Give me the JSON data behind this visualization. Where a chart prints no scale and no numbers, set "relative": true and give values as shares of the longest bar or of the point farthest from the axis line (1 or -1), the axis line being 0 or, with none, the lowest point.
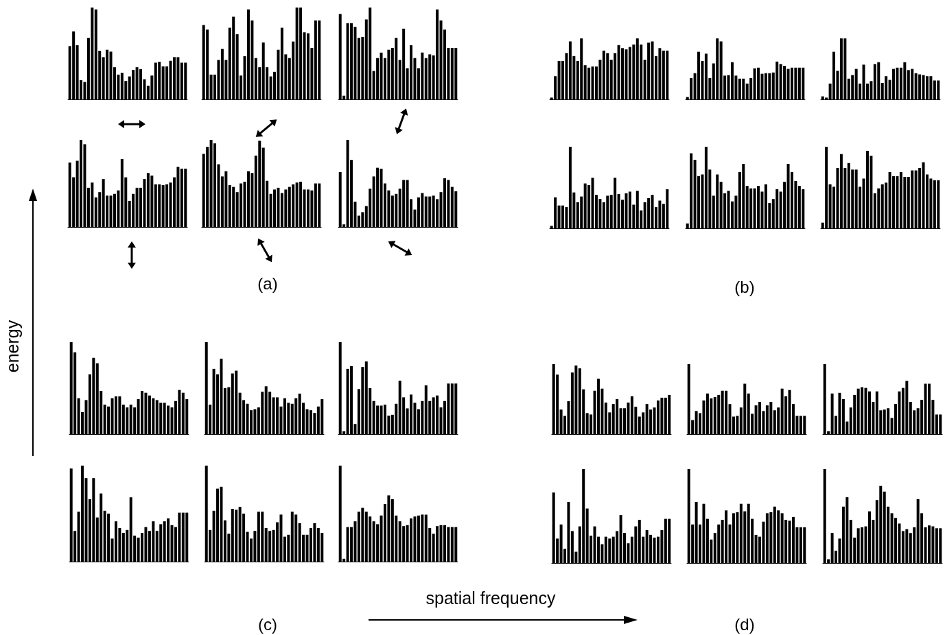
{
  "chart_data": [
    {
      "type": "bar",
      "relative": true,
      "color": "#000000",
      "annotations": [
        "(a)"
      ],
      "categories": [
        null,
        null,
        null,
        null,
        null,
        null,
        null,
        null,
        null,
        null,
        null,
        null,
        null,
        null,
        null,
        null,
        null,
        null,
        null,
        null,
        null,
        null,
        null,
        null,
        null,
        null,
        null,
        null,
        null,
        null,
        null,
        null
      ],
      "values": [
        0.58,
        0.74,
        0.59,
        0.21,
        0.19,
        0.67,
        1.0,
        0.98,
        0.53,
        0.46,
        0.54,
        0.52,
        0.35,
        0.27,
        0.29,
        0.2,
        0.25,
        0.32,
        0.35,
        0.33,
        0.22,
        0.15,
        0.26,
        0.4,
        0.41,
        0.36,
        0.36,
        0.42,
        0.46,
        0.46,
        0.4,
        0.4
      ]
    },
    {
      "type": "bar",
      "relative": true,
      "color": "#000000",
      "categories": [
        null,
        null,
        null,
        null,
        null,
        null,
        null,
        null,
        null,
        null,
        null,
        null,
        null,
        null,
        null,
        null,
        null,
        null,
        null,
        null,
        null,
        null,
        null,
        null,
        null,
        null,
        null,
        null,
        null,
        null,
        null,
        null
      ],
      "values": [
        0.81,
        0.76,
        0.27,
        0.27,
        0.43,
        0.55,
        0.43,
        0.78,
        0.9,
        0.71,
        0.26,
        0.47,
        0.98,
        0.86,
        0.45,
        0.35,
        0.62,
        0.35,
        0.25,
        0.3,
        0.54,
        0.78,
        0.49,
        0.45,
        0.63,
        1.0,
        1.0,
        0.73,
        0.72,
        0.56,
        0.86,
        0.86
      ]
    },
    {
      "type": "bar",
      "relative": true,
      "color": "#000000",
      "categories": [
        null,
        null,
        null,
        null,
        null,
        null,
        null,
        null,
        null,
        null,
        null,
        null,
        null,
        null,
        null,
        null,
        null,
        null,
        null,
        null,
        null,
        null,
        null,
        null,
        null,
        null,
        null,
        null,
        null,
        null,
        null,
        null
      ],
      "values": [
        0.93,
        0.04,
        0.83,
        0.83,
        0.79,
        0.67,
        0.68,
        0.87,
        1.0,
        0.31,
        0.45,
        0.51,
        0.45,
        0.54,
        0.56,
        0.67,
        0.43,
        0.77,
        0.34,
        0.59,
        0.45,
        0.34,
        0.51,
        0.45,
        0.49,
        0.48,
        0.98,
        0.86,
        0.76,
        0.56,
        0.56,
        0.56
      ]
    },
    {
      "type": "bar",
      "relative": true,
      "color": "#000000",
      "categories": [
        null,
        null,
        null,
        null,
        null,
        null,
        null,
        null,
        null,
        null,
        null,
        null,
        null,
        null,
        null,
        null,
        null,
        null,
        null,
        null,
        null,
        null,
        null,
        null,
        null,
        null,
        null,
        null,
        null,
        null,
        null,
        null
      ],
      "values": [
        0.74,
        0.57,
        0.76,
        1.0,
        0.95,
        0.45,
        0.51,
        0.34,
        0.4,
        0.55,
        0.36,
        0.36,
        0.38,
        0.42,
        0.78,
        0.57,
        0.3,
        0.38,
        0.45,
        0.45,
        0.55,
        0.62,
        0.59,
        0.49,
        0.49,
        0.48,
        0.49,
        0.51,
        0.57,
        0.69,
        0.67,
        0.67
      ]
    },
    {
      "type": "bar",
      "relative": true,
      "color": "#000000",
      "categories": [
        null,
        null,
        null,
        null,
        null,
        null,
        null,
        null,
        null,
        null,
        null,
        null,
        null,
        null,
        null,
        null,
        null,
        null,
        null,
        null,
        null,
        null,
        null,
        null,
        null,
        null,
        null,
        null,
        null,
        null,
        null,
        null
      ],
      "values": [
        0.84,
        0.92,
        1.0,
        0.96,
        0.72,
        0.58,
        0.64,
        0.48,
        0.46,
        0.4,
        0.5,
        0.52,
        0.64,
        0.62,
        0.82,
        0.99,
        0.91,
        0.53,
        0.38,
        0.43,
        0.45,
        0.39,
        0.43,
        0.46,
        0.49,
        0.51,
        0.52,
        0.43,
        0.43,
        0.42,
        0.5,
        0.5
      ]
    },
    {
      "type": "bar",
      "relative": true,
      "color": "#000000",
      "categories": [
        null,
        null,
        null,
        null,
        null,
        null,
        null,
        null,
        null,
        null,
        null,
        null,
        null,
        null,
        null,
        null,
        null,
        null,
        null,
        null,
        null,
        null,
        null,
        null,
        null,
        null,
        null,
        null,
        null,
        null,
        null,
        null
      ],
      "values": [
        0.63,
        0.03,
        1.0,
        0.77,
        0.29,
        0.13,
        0.17,
        0.24,
        0.44,
        0.58,
        0.68,
        0.67,
        0.5,
        0.42,
        0.36,
        0.38,
        0.44,
        0.54,
        0.54,
        0.32,
        0.2,
        0.34,
        0.39,
        0.35,
        0.35,
        0.36,
        0.32,
        0.4,
        0.56,
        0.54,
        0.46,
        0.41
      ]
    },
    {
      "type": "bar",
      "relative": true,
      "color": "#000000",
      "annotations": [
        "(b)"
      ],
      "categories": [
        null,
        null,
        null,
        null,
        null,
        null,
        null,
        null,
        null,
        null,
        null,
        null,
        null,
        null,
        null,
        null,
        null,
        null,
        null,
        null,
        null,
        null,
        null,
        null,
        null,
        null,
        null,
        null,
        null,
        null,
        null,
        null
      ],
      "values": [
        0.03,
        0.38,
        0.63,
        0.63,
        0.76,
        0.95,
        0.71,
        0.63,
        1.0,
        0.56,
        0.52,
        0.54,
        0.54,
        0.65,
        0.8,
        0.76,
        0.65,
        0.76,
        0.89,
        0.84,
        0.82,
        0.86,
        0.9,
        1.0,
        0.9,
        0.65,
        0.93,
        0.95,
        0.71,
        0.84,
        0.8,
        0.8
      ]
    },
    {
      "type": "bar",
      "relative": true,
      "color": "#000000",
      "categories": [
        null,
        null,
        null,
        null,
        null,
        null,
        null,
        null,
        null,
        null,
        null,
        null,
        null,
        null,
        null,
        null,
        null,
        null,
        null,
        null,
        null,
        null,
        null,
        null,
        null,
        null,
        null,
        null,
        null,
        null,
        null,
        null
      ],
      "values": [
        0.04,
        0.35,
        0.43,
        0.78,
        0.63,
        0.75,
        0.35,
        0.59,
        1.0,
        0.95,
        0.39,
        0.4,
        0.61,
        0.39,
        0.34,
        0.34,
        0.26,
        0.35,
        0.51,
        0.52,
        0.42,
        0.43,
        0.43,
        0.44,
        0.62,
        0.58,
        0.55,
        0.5,
        0.52,
        0.52,
        0.52,
        0.52
      ]
    },
    {
      "type": "bar",
      "relative": true,
      "color": "#000000",
      "categories": [
        null,
        null,
        null,
        null,
        null,
        null,
        null,
        null,
        null,
        null,
        null,
        null,
        null,
        null,
        null,
        null,
        null,
        null,
        null,
        null,
        null,
        null,
        null,
        null,
        null,
        null,
        null,
        null,
        null,
        null,
        null,
        null
      ],
      "values": [
        0.05,
        0.03,
        0.26,
        0.78,
        0.47,
        1.0,
        1.0,
        0.34,
        0.4,
        0.5,
        0.26,
        0.57,
        0.26,
        0.3,
        0.58,
        0.61,
        0.27,
        0.38,
        0.32,
        0.5,
        0.52,
        0.52,
        0.61,
        0.48,
        0.5,
        0.43,
        0.41,
        0.4,
        0.38,
        0.38,
        0.31,
        0.31
      ]
    },
    {
      "type": "bar",
      "relative": true,
      "color": "#000000",
      "categories": [
        null,
        null,
        null,
        null,
        null,
        null,
        null,
        null,
        null,
        null,
        null,
        null,
        null,
        null,
        null,
        null,
        null,
        null,
        null,
        null,
        null,
        null,
        null,
        null,
        null,
        null,
        null,
        null,
        null,
        null,
        null,
        null
      ],
      "values": [
        0.03,
        0.38,
        0.28,
        0.28,
        0.26,
        1.0,
        0.44,
        0.32,
        0.39,
        0.55,
        0.53,
        0.62,
        0.41,
        0.36,
        0.32,
        0.4,
        0.41,
        0.62,
        0.42,
        0.35,
        0.43,
        0.45,
        0.29,
        0.46,
        0.22,
        0.32,
        0.37,
        0.41,
        0.26,
        0.34,
        0.3,
        0.48
      ]
    },
    {
      "type": "bar",
      "relative": true,
      "color": "#000000",
      "categories": [
        null,
        null,
        null,
        null,
        null,
        null,
        null,
        null,
        null,
        null,
        null,
        null,
        null,
        null,
        null,
        null,
        null,
        null,
        null,
        null,
        null,
        null,
        null,
        null,
        null,
        null,
        null,
        null,
        null,
        null,
        null,
        null
      ],
      "values": [
        0.06,
        0.92,
        0.84,
        0.64,
        0.66,
        1.0,
        0.72,
        0.4,
        0.66,
        0.57,
        0.43,
        0.46,
        0.33,
        0.4,
        0.69,
        0.79,
        0.52,
        0.49,
        0.49,
        0.52,
        0.45,
        0.54,
        0.31,
        0.36,
        0.48,
        0.45,
        0.57,
        0.79,
        0.69,
        0.58,
        0.52,
        0.48
      ]
    },
    {
      "type": "bar",
      "relative": true,
      "color": "#000000",
      "categories": [
        null,
        null,
        null,
        null,
        null,
        null,
        null,
        null,
        null,
        null,
        null,
        null,
        null,
        null,
        null,
        null,
        null,
        null,
        null,
        null,
        null,
        null,
        null,
        null,
        null,
        null,
        null,
        null,
        null,
        null,
        null,
        null
      ],
      "values": [
        0.07,
        1.0,
        0.54,
        0.51,
        0.74,
        0.91,
        0.74,
        0.8,
        0.72,
        0.72,
        0.51,
        0.61,
        0.95,
        0.89,
        0.43,
        0.49,
        0.54,
        0.56,
        0.69,
        0.64,
        0.64,
        0.69,
        0.63,
        0.63,
        0.71,
        0.71,
        0.74,
        0.81,
        0.66,
        0.61,
        0.59,
        0.59
      ]
    },
    {
      "type": "bar",
      "relative": true,
      "color": "#000000",
      "annotations": [
        "(c)"
      ],
      "ylabel": "energy",
      "categories": [
        null,
        null,
        null,
        null,
        null,
        null,
        null,
        null,
        null,
        null,
        null,
        null,
        null,
        null,
        null,
        null,
        null,
        null,
        null,
        null,
        null,
        null,
        null,
        null,
        null,
        null,
        null,
        null,
        null,
        null,
        null,
        null
      ],
      "values": [
        1.0,
        0.89,
        0.39,
        0.24,
        0.37,
        0.65,
        0.83,
        0.77,
        0.47,
        0.32,
        0.3,
        0.39,
        0.41,
        0.41,
        0.32,
        0.29,
        0.32,
        0.29,
        0.38,
        0.47,
        0.45,
        0.42,
        0.39,
        0.37,
        0.34,
        0.34,
        0.31,
        0.29,
        0.36,
        0.48,
        0.45,
        0.38
      ]
    },
    {
      "type": "bar",
      "relative": true,
      "color": "#000000",
      "categories": [
        null,
        null,
        null,
        null,
        null,
        null,
        null,
        null,
        null,
        null,
        null,
        null,
        null,
        null,
        null,
        null,
        null,
        null,
        null,
        null,
        null,
        null,
        null,
        null,
        null,
        null,
        null,
        null,
        null,
        null,
        null,
        null
      ],
      "values": [
        1.0,
        0.32,
        0.71,
        0.65,
        0.82,
        0.5,
        0.51,
        0.66,
        0.69,
        0.45,
        0.37,
        0.33,
        0.26,
        0.27,
        0.29,
        0.46,
        0.52,
        0.46,
        0.4,
        0.4,
        0.3,
        0.39,
        0.34,
        0.33,
        0.39,
        0.44,
        0.34,
        0.27,
        0.26,
        0.23,
        0.3,
        0.38
      ]
    },
    {
      "type": "bar",
      "relative": true,
      "color": "#000000",
      "categories": [
        null,
        null,
        null,
        null,
        null,
        null,
        null,
        null,
        null,
        null,
        null,
        null,
        null,
        null,
        null,
        null,
        null,
        null,
        null,
        null,
        null,
        null,
        null,
        null,
        null,
        null,
        null,
        null,
        null,
        null,
        null,
        null
      ],
      "values": [
        1.0,
        0.03,
        0.71,
        0.74,
        0.11,
        0.49,
        0.73,
        0.79,
        0.5,
        0.36,
        0.31,
        0.31,
        0.32,
        0.2,
        0.21,
        0.33,
        0.58,
        0.4,
        0.28,
        0.43,
        0.34,
        0.27,
        0.36,
        0.53,
        0.36,
        0.4,
        0.42,
        0.29,
        0.36,
        0.55,
        0.55,
        0.55
      ]
    },
    {
      "type": "bar",
      "relative": true,
      "color": "#000000",
      "categories": [
        null,
        null,
        null,
        null,
        null,
        null,
        null,
        null,
        null,
        null,
        null,
        null,
        null,
        null,
        null,
        null,
        null,
        null,
        null,
        null,
        null,
        null,
        null,
        null,
        null,
        null,
        null,
        null,
        null,
        null,
        null,
        null
      ],
      "values": [
        0.97,
        0.32,
        0.52,
        1.0,
        0.87,
        0.65,
        0.87,
        0.46,
        0.71,
        0.53,
        0.5,
        0.24,
        0.42,
        0.35,
        0.3,
        0.33,
        0.67,
        0.27,
        0.25,
        0.3,
        0.36,
        0.32,
        0.42,
        0.32,
        0.39,
        0.42,
        0.45,
        0.38,
        0.36,
        0.51,
        0.51,
        0.51
      ]
    },
    {
      "type": "bar",
      "relative": true,
      "color": "#000000",
      "categories": [
        null,
        null,
        null,
        null,
        null,
        null,
        null,
        null,
        null,
        null,
        null,
        null,
        null,
        null,
        null,
        null,
        null,
        null,
        null,
        null,
        null,
        null,
        null,
        null,
        null,
        null,
        null,
        null,
        null,
        null,
        null,
        null
      ],
      "values": [
        1.0,
        0.33,
        0.53,
        0.76,
        0.78,
        0.43,
        0.29,
        0.55,
        0.54,
        0.57,
        0.5,
        0.31,
        0.24,
        0.32,
        0.52,
        0.52,
        0.35,
        0.32,
        0.33,
        0.41,
        0.49,
        0.26,
        0.28,
        0.52,
        0.49,
        0.4,
        0.28,
        0.28,
        0.35,
        0.4,
        0.35,
        0.3
      ]
    },
    {
      "type": "bar",
      "relative": true,
      "color": "#000000",
      "categories": [
        null,
        null,
        null,
        null,
        null,
        null,
        null,
        null,
        null,
        null,
        null,
        null,
        null,
        null,
        null,
        null,
        null,
        null,
        null,
        null,
        null,
        null,
        null,
        null,
        null,
        null,
        null,
        null,
        null,
        null,
        null,
        null
      ],
      "xlabel": "spatial frequency",
      "values": [
        1.0,
        0.03,
        0.36,
        0.36,
        0.42,
        0.52,
        0.56,
        0.52,
        0.47,
        0.42,
        0.39,
        0.48,
        0.6,
        0.69,
        0.65,
        0.48,
        0.42,
        0.37,
        0.38,
        0.45,
        0.47,
        0.48,
        0.49,
        0.49,
        0.35,
        0.29,
        0.37,
        0.38,
        0.38,
        0.36,
        0.36,
        0.36
      ]
    },
    {
      "type": "bar",
      "relative": true,
      "color": "#000000",
      "annotations": [
        "(d)"
      ],
      "categories": [
        null,
        null,
        null,
        null,
        null,
        null,
        null,
        null,
        null,
        null,
        null,
        null,
        null,
        null,
        null,
        null,
        null,
        null,
        null,
        null,
        null,
        null,
        null,
        null,
        null,
        null,
        null,
        null,
        null,
        null,
        null,
        null
      ],
      "values": [
        1.0,
        0.85,
        0.35,
        0.26,
        0.47,
        0.88,
        0.98,
        0.94,
        0.64,
        0.3,
        0.28,
        0.62,
        0.79,
        0.65,
        0.45,
        0.31,
        0.43,
        0.5,
        0.37,
        0.37,
        0.45,
        0.54,
        0.39,
        0.25,
        0.31,
        0.43,
        0.35,
        0.38,
        0.48,
        0.52,
        0.52,
        0.56
      ]
    },
    {
      "type": "bar",
      "relative": true,
      "color": "#000000",
      "categories": [
        null,
        null,
        null,
        null,
        null,
        null,
        null,
        null,
        null,
        null,
        null,
        null,
        null,
        null,
        null,
        null,
        null,
        null,
        null,
        null,
        null,
        null,
        null,
        null,
        null,
        null,
        null,
        null,
        null,
        null,
        null,
        null
      ],
      "values": [
        1.0,
        0.2,
        0.33,
        0.3,
        0.48,
        0.58,
        0.51,
        0.53,
        0.56,
        0.62,
        0.62,
        0.43,
        0.25,
        0.26,
        0.38,
        0.72,
        0.58,
        0.29,
        0.41,
        0.46,
        0.33,
        0.41,
        0.46,
        0.34,
        0.38,
        0.65,
        0.54,
        0.63,
        0.43,
        0.26,
        0.26,
        0.26
      ]
    },
    {
      "type": "bar",
      "relative": true,
      "color": "#000000",
      "categories": [
        null,
        null,
        null,
        null,
        null,
        null,
        null,
        null,
        null,
        null,
        null,
        null,
        null,
        null,
        null,
        null,
        null,
        null,
        null,
        null,
        null,
        null,
        null,
        null,
        null,
        null,
        null,
        null,
        null,
        null,
        null,
        null
      ],
      "values": [
        1.0,
        0.04,
        0.58,
        0.26,
        0.59,
        0.5,
        0.18,
        0.38,
        0.56,
        0.65,
        0.67,
        0.66,
        0.61,
        0.46,
        0.61,
        0.34,
        0.35,
        0.37,
        0.23,
        0.43,
        0.61,
        0.66,
        0.76,
        0.46,
        0.34,
        0.37,
        0.49,
        0.72,
        0.72,
        0.49,
        0.28,
        0.28
      ]
    },
    {
      "type": "bar",
      "relative": true,
      "color": "#000000",
      "categories": [
        null,
        null,
        null,
        null,
        null,
        null,
        null,
        null,
        null,
        null,
        null,
        null,
        null,
        null,
        null,
        null,
        null,
        null,
        null,
        null,
        null,
        null,
        null,
        null,
        null,
        null,
        null,
        null,
        null,
        null,
        null,
        null
      ],
      "values": [
        0.75,
        0.26,
        0.41,
        0.15,
        0.65,
        0.34,
        0.12,
        0.39,
        1.0,
        0.58,
        0.29,
        0.39,
        0.28,
        0.2,
        0.28,
        0.26,
        0.28,
        0.34,
        0.51,
        0.32,
        0.21,
        0.28,
        0.39,
        0.46,
        0.28,
        0.35,
        0.3,
        0.27,
        0.28,
        0.35,
        0.47,
        0.47
      ]
    },
    {
      "type": "bar",
      "relative": true,
      "color": "#000000",
      "categories": [
        null,
        null,
        null,
        null,
        null,
        null,
        null,
        null,
        null,
        null,
        null,
        null,
        null,
        null,
        null,
        null,
        null,
        null,
        null,
        null,
        null,
        null,
        null,
        null,
        null,
        null,
        null,
        null,
        null,
        null,
        null,
        null
      ],
      "values": [
        1.0,
        0.41,
        0.65,
        0.41,
        0.63,
        0.47,
        0.25,
        0.32,
        0.41,
        0.46,
        0.56,
        0.41,
        0.53,
        0.54,
        0.63,
        0.55,
        0.63,
        0.47,
        0.3,
        0.28,
        0.44,
        0.53,
        0.54,
        0.6,
        0.56,
        0.53,
        0.46,
        0.45,
        0.49,
        0.38,
        0.38,
        0.38
      ]
    },
    {
      "type": "bar",
      "relative": true,
      "color": "#000000",
      "categories": [
        null,
        null,
        null,
        null,
        null,
        null,
        null,
        null,
        null,
        null,
        null,
        null,
        null,
        null,
        null,
        null,
        null,
        null,
        null,
        null,
        null,
        null,
        null,
        null,
        null,
        null,
        null,
        null,
        null,
        null,
        null,
        null
      ],
      "values": [
        1.0,
        0.04,
        0.32,
        0.13,
        0.26,
        0.6,
        0.7,
        0.46,
        0.27,
        0.37,
        0.38,
        0.39,
        0.55,
        0.46,
        0.67,
        0.82,
        0.76,
        0.6,
        0.53,
        0.48,
        0.42,
        0.34,
        0.36,
        0.32,
        0.38,
        0.68,
        0.53,
        0.38,
        0.4,
        0.39,
        0.37,
        0.37
      ]
    }
  ]
}
